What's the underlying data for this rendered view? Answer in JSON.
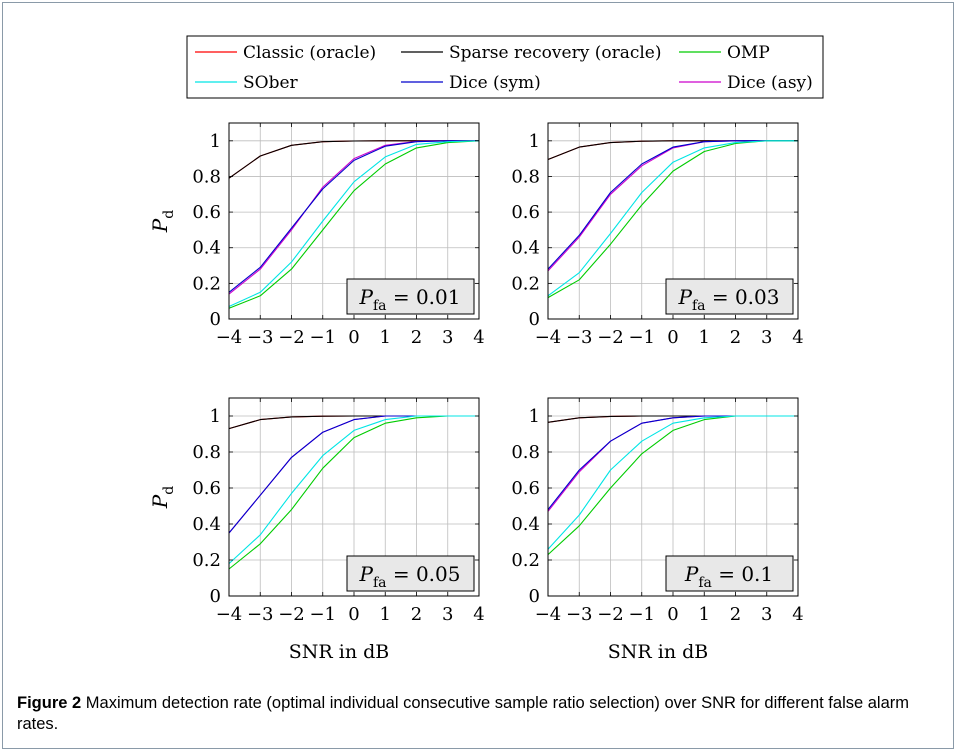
{
  "legend": {
    "entries": [
      {
        "name": "Classic (oracle)",
        "color": "#ff0000"
      },
      {
        "name": "Sparse recovery (oracle)",
        "color": "#000000"
      },
      {
        "name": "OMP",
        "color": "#00cc00"
      },
      {
        "name": "SOber",
        "color": "#00e5e5"
      },
      {
        "name": "Dice (sym)",
        "color": "#0000cc"
      },
      {
        "name": "Dice (asy)",
        "color": "#cc00cc"
      }
    ]
  },
  "caption": {
    "label": "Figure 2",
    "text": "Maximum detection rate (optimal individual consecutive sample ratio selection) over SNR for different false alarm rates."
  },
  "chart_data": [
    {
      "type": "line",
      "annotation": {
        "base": "P",
        "sub": "fa",
        "rest": " = 0.01"
      },
      "ylabel": {
        "base": "P",
        "sub": "d"
      },
      "xlabel": "",
      "xlim": [
        -4,
        4
      ],
      "ylim": [
        0,
        1.1
      ],
      "x": [
        -4,
        -3,
        -2,
        -1,
        0,
        1,
        2,
        3,
        4
      ],
      "series": [
        {
          "name": "Classic (oracle)",
          "values": [
            0.79,
            0.915,
            0.975,
            0.995,
            0.999,
            1,
            1,
            1,
            1
          ]
        },
        {
          "name": "Sparse recovery (oracle)",
          "values": [
            0.79,
            0.915,
            0.975,
            0.995,
            0.999,
            1,
            1,
            1,
            1
          ]
        },
        {
          "name": "OMP",
          "values": [
            0.06,
            0.13,
            0.28,
            0.5,
            0.72,
            0.87,
            0.96,
            0.99,
            1
          ]
        },
        {
          "name": "SOber",
          "values": [
            0.07,
            0.15,
            0.32,
            0.55,
            0.77,
            0.91,
            0.98,
            0.995,
            1
          ]
        },
        {
          "name": "Dice (sym)",
          "values": [
            0.15,
            0.29,
            0.51,
            0.73,
            0.89,
            0.97,
            0.995,
            1,
            1
          ]
        },
        {
          "name": "Dice (asy)",
          "values": [
            0.14,
            0.28,
            0.5,
            0.74,
            0.9,
            0.975,
            0.997,
            1,
            1
          ]
        }
      ]
    },
    {
      "type": "line",
      "annotation": {
        "base": "P",
        "sub": "fa",
        "rest": " = 0.03"
      },
      "ylabel": {
        "base": "",
        "sub": ""
      },
      "xlabel": "",
      "xlim": [
        -4,
        4
      ],
      "ylim": [
        0,
        1.1
      ],
      "x": [
        -4,
        -3,
        -2,
        -1,
        0,
        1,
        2,
        3,
        4
      ],
      "series": [
        {
          "name": "Classic (oracle)",
          "values": [
            0.895,
            0.965,
            0.99,
            0.998,
            1,
            1,
            1,
            1,
            1
          ]
        },
        {
          "name": "Sparse recovery (oracle)",
          "values": [
            0.895,
            0.965,
            0.99,
            0.998,
            1,
            1,
            1,
            1,
            1
          ]
        },
        {
          "name": "OMP",
          "values": [
            0.12,
            0.22,
            0.42,
            0.64,
            0.83,
            0.94,
            0.985,
            1,
            1
          ]
        },
        {
          "name": "SOber",
          "values": [
            0.13,
            0.26,
            0.48,
            0.71,
            0.88,
            0.96,
            0.99,
            1,
            1
          ]
        },
        {
          "name": "Dice (sym)",
          "values": [
            0.28,
            0.47,
            0.71,
            0.87,
            0.965,
            0.995,
            1,
            1,
            1
          ]
        },
        {
          "name": "Dice (asy)",
          "values": [
            0.27,
            0.46,
            0.7,
            0.86,
            0.96,
            0.995,
            1,
            1,
            1
          ]
        }
      ]
    },
    {
      "type": "line",
      "annotation": {
        "base": "P",
        "sub": "fa",
        "rest": " = 0.05"
      },
      "ylabel": {
        "base": "P",
        "sub": "d"
      },
      "xlabel": "SNR in dB",
      "xlim": [
        -4,
        4
      ],
      "ylim": [
        0,
        1.1
      ],
      "x": [
        -4,
        -3,
        -2,
        -1,
        0,
        1,
        2,
        3,
        4
      ],
      "series": [
        {
          "name": "Classic (oracle)",
          "values": [
            0.93,
            0.98,
            0.995,
            0.999,
            1,
            1,
            1,
            1,
            1
          ]
        },
        {
          "name": "Sparse recovery (oracle)",
          "values": [
            0.93,
            0.98,
            0.995,
            0.999,
            1,
            1,
            1,
            1,
            1
          ]
        },
        {
          "name": "OMP",
          "values": [
            0.15,
            0.29,
            0.48,
            0.71,
            0.88,
            0.96,
            0.99,
            1,
            1
          ]
        },
        {
          "name": "SOber",
          "values": [
            0.18,
            0.34,
            0.57,
            0.78,
            0.92,
            0.98,
            1,
            1,
            1
          ]
        },
        {
          "name": "Dice (sym)",
          "values": [
            0.35,
            0.56,
            0.77,
            0.91,
            0.98,
            1,
            1,
            1,
            1
          ]
        },
        {
          "name": "Dice (asy)",
          "values": [
            0.35,
            0.56,
            0.77,
            0.91,
            0.98,
            1,
            1,
            1,
            1
          ]
        }
      ]
    },
    {
      "type": "line",
      "annotation": {
        "base": "P",
        "sub": "fa",
        "rest": " = 0.1"
      },
      "ylabel": {
        "base": "",
        "sub": ""
      },
      "xlabel": "SNR in dB",
      "xlim": [
        -4,
        4
      ],
      "ylim": [
        0,
        1.1
      ],
      "x": [
        -4,
        -3,
        -2,
        -1,
        0,
        1,
        2,
        3,
        4
      ],
      "series": [
        {
          "name": "Classic (oracle)",
          "values": [
            0.965,
            0.99,
            0.998,
            1,
            1,
            1,
            1,
            1,
            1
          ]
        },
        {
          "name": "Sparse recovery (oracle)",
          "values": [
            0.965,
            0.99,
            0.998,
            1,
            1,
            1,
            1,
            1,
            1
          ]
        },
        {
          "name": "OMP",
          "values": [
            0.23,
            0.39,
            0.6,
            0.79,
            0.92,
            0.98,
            1,
            1,
            1
          ]
        },
        {
          "name": "SOber",
          "values": [
            0.26,
            0.45,
            0.7,
            0.86,
            0.96,
            0.99,
            1,
            1,
            1
          ]
        },
        {
          "name": "Dice (sym)",
          "values": [
            0.48,
            0.7,
            0.86,
            0.96,
            0.99,
            1,
            1,
            1,
            1
          ]
        },
        {
          "name": "Dice (asy)",
          "values": [
            0.47,
            0.69,
            0.86,
            0.96,
            0.99,
            1,
            1,
            1,
            1
          ]
        }
      ]
    }
  ]
}
